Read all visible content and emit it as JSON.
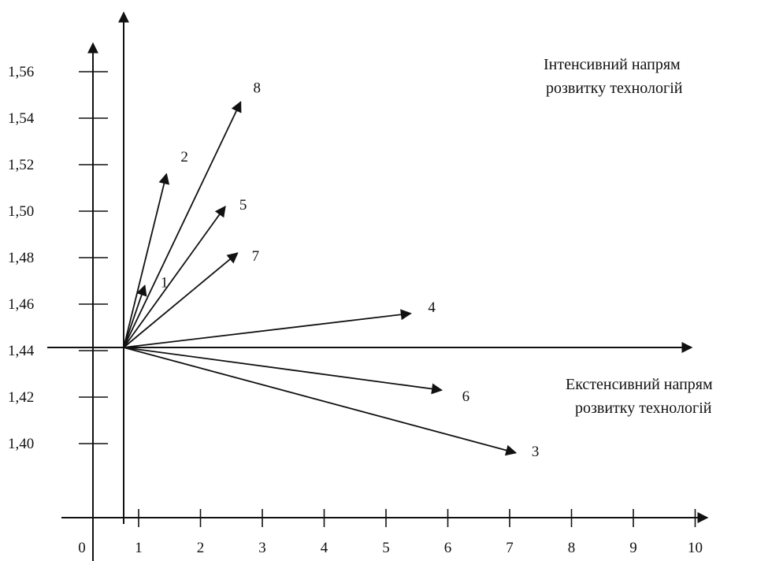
{
  "chart_data": {
    "type": "vector-diagram",
    "x_axis_ticks": [
      "0",
      "1",
      "2",
      "3",
      "4",
      "5",
      "6",
      "7",
      "8",
      "9",
      "10"
    ],
    "y_axis_ticks": [
      "1,40",
      "1,42",
      "1,44",
      "1,46",
      "1,48",
      "1,50",
      "1,52",
      "1,54",
      "1,56"
    ],
    "origin": {
      "x": 0.75,
      "y": 1.45
    },
    "vectors": [
      {
        "label": "1",
        "x": 1.1,
        "y": 1.468
      },
      {
        "label": "2",
        "x": 1.45,
        "y": 1.516
      },
      {
        "label": "3",
        "x": 7.1,
        "y": 1.396
      },
      {
        "label": "4",
        "x": 5.4,
        "y": 1.456
      },
      {
        "label": "5",
        "x": 2.4,
        "y": 1.502
      },
      {
        "label": "6",
        "x": 5.9,
        "y": 1.423
      },
      {
        "label": "7",
        "x": 2.6,
        "y": 1.482
      },
      {
        "label": "8",
        "x": 2.65,
        "y": 1.547
      }
    ]
  },
  "captions": {
    "intensive_line1": "Інтенсивний напрям",
    "intensive_line2": "розвитку технологій",
    "extensive_line1": "Екстенсивний напрям",
    "extensive_line2": "розвитку технологій"
  },
  "colors": {
    "ink": "#111111",
    "background": "#ffffff"
  }
}
